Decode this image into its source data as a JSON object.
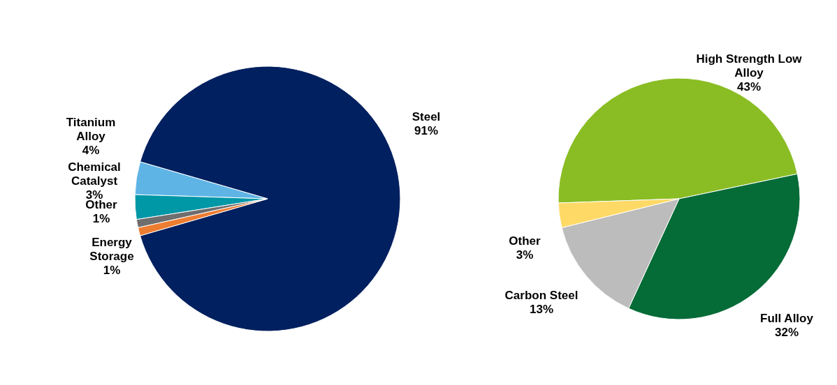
{
  "chart_data": [
    {
      "type": "pie",
      "categories": [
        "Steel",
        "Titanium Alloy",
        "Chemical Catalyst",
        "Other",
        "Energy Storage"
      ],
      "values": [
        91,
        4,
        3,
        1,
        1
      ],
      "colors": [
        "#002060",
        "#5fb4e6",
        "#0097a7",
        "#6e6e6e",
        "#ed7d31"
      ],
      "value_labels": [
        "91%",
        "4%",
        "3%",
        "1%",
        "1%"
      ]
    },
    {
      "type": "pie",
      "categories": [
        "High Strength Low Alloy",
        "Full Alloy",
        "Carbon Steel",
        "Other"
      ],
      "values": [
        43,
        32,
        13,
        3
      ],
      "colors": [
        "#8abd24",
        "#056b37",
        "#bcbcbc",
        "#ffd966"
      ],
      "value_labels": [
        "43%",
        "32%",
        "13%",
        "3%"
      ]
    }
  ]
}
